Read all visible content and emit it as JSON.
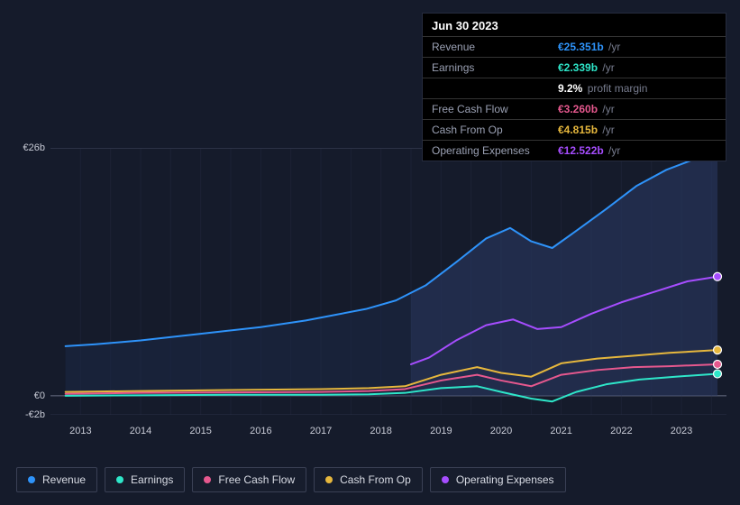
{
  "chart": {
    "type": "line",
    "background_color": "#151b2b",
    "grid_color": "#2b3247",
    "zero_line_color": "#6a6f85",
    "ylim_min": -2,
    "ylim_max": 26,
    "y_ticks": [
      {
        "value": 26,
        "label": "€26b"
      },
      {
        "value": 0,
        "label": "€0"
      },
      {
        "value": -2,
        "label": "-€2b"
      }
    ],
    "x_labels": [
      "2013",
      "2014",
      "2015",
      "2016",
      "2017",
      "2018",
      "2019",
      "2020",
      "2021",
      "2022",
      "2023"
    ],
    "x_min": 2012.5,
    "x_max": 2023.75,
    "divider_x": 2018.5,
    "area_past_fill": "rgba(27,40,70,0.55)",
    "area_future_fill": "rgba(40,55,95,0.62)",
    "series": {
      "revenue": {
        "label": "Revenue",
        "color": "#2e93fa",
        "stroke_width": 2,
        "points": [
          [
            2012.75,
            5.2
          ],
          [
            2013.25,
            5.4
          ],
          [
            2014,
            5.8
          ],
          [
            2015,
            6.5
          ],
          [
            2016,
            7.2
          ],
          [
            2016.75,
            7.9
          ],
          [
            2017.25,
            8.5
          ],
          [
            2017.75,
            9.1
          ],
          [
            2018.25,
            10.0
          ],
          [
            2018.75,
            11.6
          ],
          [
            2019.25,
            14.0
          ],
          [
            2019.75,
            16.5
          ],
          [
            2020.15,
            17.6
          ],
          [
            2020.5,
            16.2
          ],
          [
            2020.85,
            15.5
          ],
          [
            2021.25,
            17.3
          ],
          [
            2021.75,
            19.6
          ],
          [
            2022.25,
            22.0
          ],
          [
            2022.75,
            23.7
          ],
          [
            2023.25,
            24.9
          ],
          [
            2023.6,
            25.3
          ]
        ]
      },
      "opex": {
        "label": "Operating Expenses",
        "color": "#a64dff",
        "stroke_width": 2,
        "points": [
          [
            2018.5,
            3.3
          ],
          [
            2018.8,
            4.0
          ],
          [
            2019.25,
            5.8
          ],
          [
            2019.75,
            7.4
          ],
          [
            2020.2,
            8.0
          ],
          [
            2020.6,
            7.0
          ],
          [
            2021.0,
            7.2
          ],
          [
            2021.5,
            8.6
          ],
          [
            2022.0,
            9.8
          ],
          [
            2022.6,
            11.0
          ],
          [
            2023.1,
            12.0
          ],
          [
            2023.6,
            12.5
          ]
        ]
      },
      "cash_from_op": {
        "label": "Cash From Op",
        "color": "#e6b73d",
        "stroke_width": 2,
        "points": [
          [
            2012.75,
            0.4
          ],
          [
            2014,
            0.5
          ],
          [
            2015.5,
            0.6
          ],
          [
            2017,
            0.7
          ],
          [
            2017.8,
            0.8
          ],
          [
            2018.4,
            1.0
          ],
          [
            2019.0,
            2.2
          ],
          [
            2019.6,
            3.0
          ],
          [
            2020.0,
            2.4
          ],
          [
            2020.5,
            2.0
          ],
          [
            2021.0,
            3.4
          ],
          [
            2021.6,
            3.9
          ],
          [
            2022.2,
            4.2
          ],
          [
            2022.8,
            4.5
          ],
          [
            2023.6,
            4.8
          ]
        ]
      },
      "free_cash_flow": {
        "label": "Free Cash Flow",
        "color": "#e6588e",
        "stroke_width": 2,
        "points": [
          [
            2012.75,
            0.2
          ],
          [
            2014,
            0.3
          ],
          [
            2015.5,
            0.35
          ],
          [
            2017,
            0.4
          ],
          [
            2017.8,
            0.5
          ],
          [
            2018.4,
            0.7
          ],
          [
            2019.0,
            1.6
          ],
          [
            2019.6,
            2.2
          ],
          [
            2020.0,
            1.6
          ],
          [
            2020.5,
            1.0
          ],
          [
            2021.0,
            2.2
          ],
          [
            2021.6,
            2.7
          ],
          [
            2022.2,
            3.0
          ],
          [
            2022.8,
            3.1
          ],
          [
            2023.6,
            3.3
          ]
        ]
      },
      "earnings": {
        "label": "Earnings",
        "color": "#2ee6c9",
        "stroke_width": 2,
        "points": [
          [
            2012.75,
            0.0
          ],
          [
            2014,
            0.05
          ],
          [
            2015.5,
            0.1
          ],
          [
            2017,
            0.1
          ],
          [
            2017.8,
            0.15
          ],
          [
            2018.4,
            0.3
          ],
          [
            2019.0,
            0.8
          ],
          [
            2019.6,
            1.0
          ],
          [
            2020.0,
            0.4
          ],
          [
            2020.5,
            -0.3
          ],
          [
            2020.85,
            -0.6
          ],
          [
            2021.25,
            0.4
          ],
          [
            2021.75,
            1.2
          ],
          [
            2022.3,
            1.7
          ],
          [
            2022.9,
            2.0
          ],
          [
            2023.6,
            2.3
          ]
        ]
      }
    },
    "endpoint_markers": [
      {
        "color": "#2e93fa",
        "x": 2023.6,
        "y": 25.3
      },
      {
        "color": "#a64dff",
        "x": 2023.6,
        "y": 12.5
      },
      {
        "color": "#e6b73d",
        "x": 2023.6,
        "y": 4.8
      },
      {
        "color": "#e6588e",
        "x": 2023.6,
        "y": 3.3
      },
      {
        "color": "#2ee6c9",
        "x": 2023.6,
        "y": 2.3
      }
    ]
  },
  "tooltip": {
    "date": "Jun 30 2023",
    "rows": [
      {
        "label": "Revenue",
        "value": "€25.351b",
        "unit": "/yr",
        "color": "#2e93fa"
      },
      {
        "label": "Earnings",
        "value": "€2.339b",
        "unit": "/yr",
        "color": "#2ee6c9"
      },
      {
        "label": "",
        "value": "9.2%",
        "unit": "profit margin",
        "color": "#ffffff"
      },
      {
        "label": "Free Cash Flow",
        "value": "€3.260b",
        "unit": "/yr",
        "color": "#e6588e"
      },
      {
        "label": "Cash From Op",
        "value": "€4.815b",
        "unit": "/yr",
        "color": "#e6b73d"
      },
      {
        "label": "Operating Expenses",
        "value": "€12.522b",
        "unit": "/yr",
        "color": "#a64dff"
      }
    ]
  },
  "legend": [
    {
      "key": "revenue",
      "label": "Revenue",
      "color": "#2e93fa"
    },
    {
      "key": "earnings",
      "label": "Earnings",
      "color": "#2ee6c9"
    },
    {
      "key": "free_cash_flow",
      "label": "Free Cash Flow",
      "color": "#e6588e"
    },
    {
      "key": "cash_from_op",
      "label": "Cash From Op",
      "color": "#e6b73d"
    },
    {
      "key": "opex",
      "label": "Operating Expenses",
      "color": "#a64dff"
    }
  ]
}
